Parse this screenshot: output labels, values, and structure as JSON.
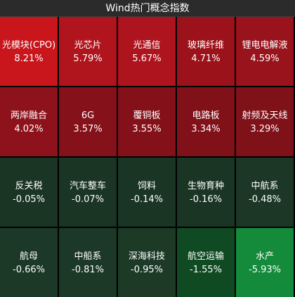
{
  "header": {
    "title": "Wind热门概念指数"
  },
  "tiles": [
    {
      "name": "光模块(CPO)",
      "change": "8.21%",
      "color": "#c9151c"
    },
    {
      "name": "光芯片",
      "change": "5.79%",
      "color": "#b0141d"
    },
    {
      "name": "光通信",
      "change": "5.67%",
      "color": "#ae141d"
    },
    {
      "name": "玻璃纤维",
      "change": "4.71%",
      "color": "#9b121b"
    },
    {
      "name": "锂电电解液",
      "change": "4.59%",
      "color": "#98131c"
    },
    {
      "name": "两岸融合",
      "change": "4.02%",
      "color": "#8d121b"
    },
    {
      "name": "6G",
      "change": "3.57%",
      "color": "#85111a"
    },
    {
      "name": "覆铜板",
      "change": "3.55%",
      "color": "#84111a"
    },
    {
      "name": "电路板",
      "change": "3.34%",
      "color": "#801119"
    },
    {
      "name": "射频及天线",
      "change": "3.29%",
      "color": "#7f1119"
    },
    {
      "name": "反关税",
      "change": "-0.05%",
      "color": "#1b3524"
    },
    {
      "name": "汽车整车",
      "change": "-0.07%",
      "color": "#1b3524"
    },
    {
      "name": "饲料",
      "change": "-0.14%",
      "color": "#1b3524"
    },
    {
      "name": "生物育种",
      "change": "-0.16%",
      "color": "#1b3524"
    },
    {
      "name": "中航系",
      "change": "-0.48%",
      "color": "#1c3725"
    },
    {
      "name": "航母",
      "change": "-0.66%",
      "color": "#1c3826"
    },
    {
      "name": "中船系",
      "change": "-0.81%",
      "color": "#1c3826"
    },
    {
      "name": "深海科技",
      "change": "-0.95%",
      "color": "#1d3a27"
    },
    {
      "name": "航空运输",
      "change": "-1.55%",
      "color": "#0f4a23"
    },
    {
      "name": "水产",
      "change": "-5.93%",
      "color": "#148a3b"
    }
  ]
}
